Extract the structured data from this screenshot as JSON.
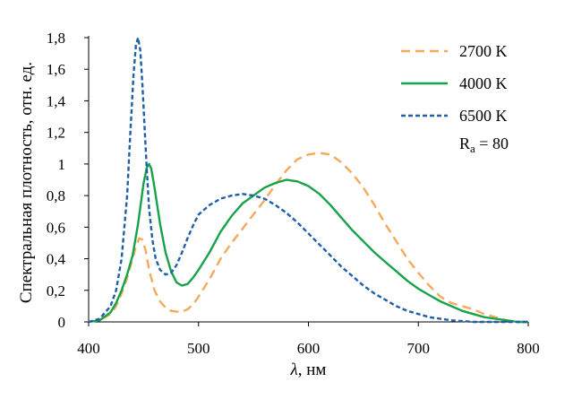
{
  "chart_data": {
    "type": "line",
    "title": "",
    "xlabel": "λ, нм",
    "xlabel_parts": {
      "symbol": "λ",
      "unit": ", нм"
    },
    "ylabel": "Спектральная плотность, отн. ед.",
    "xlim": [
      400,
      800
    ],
    "ylim": [
      0,
      1.8
    ],
    "x_ticks": [
      400,
      500,
      600,
      700,
      800
    ],
    "x_tick_labels": [
      "400",
      "500",
      "600",
      "700",
      "800"
    ],
    "y_ticks": [
      0,
      0.2,
      0.4,
      0.6,
      0.8,
      1.0,
      1.2,
      1.4,
      1.6,
      1.8
    ],
    "y_tick_labels": [
      "0",
      "0,2",
      "0,4",
      "0,6",
      "0,8",
      "1",
      "1,2",
      "1,4",
      "1,6",
      "1,8"
    ],
    "grid": false,
    "legend_position": "top-right",
    "annotation": {
      "text": "Ra = 80",
      "main": "R",
      "subscript": "a",
      "rest": " = 80"
    },
    "series": [
      {
        "name": "2700 K",
        "color": "#f5a95b",
        "style": "dashed",
        "x": [
          400,
          410,
          420,
          425,
          430,
          435,
          440,
          443,
          446,
          449,
          452,
          455,
          460,
          465,
          470,
          475,
          480,
          485,
          490,
          495,
          500,
          510,
          520,
          530,
          540,
          550,
          560,
          570,
          580,
          590,
          600,
          610,
          620,
          630,
          640,
          650,
          660,
          670,
          680,
          690,
          700,
          710,
          720,
          730,
          740,
          750,
          760,
          770,
          780,
          790,
          800
        ],
        "y": [
          0.0,
          0.01,
          0.05,
          0.1,
          0.18,
          0.28,
          0.4,
          0.48,
          0.53,
          0.52,
          0.45,
          0.33,
          0.2,
          0.13,
          0.09,
          0.07,
          0.065,
          0.065,
          0.08,
          0.11,
          0.16,
          0.27,
          0.4,
          0.5,
          0.59,
          0.68,
          0.77,
          0.87,
          0.96,
          1.03,
          1.06,
          1.07,
          1.06,
          1.01,
          0.94,
          0.85,
          0.74,
          0.62,
          0.51,
          0.4,
          0.31,
          0.23,
          0.16,
          0.12,
          0.1,
          0.08,
          0.05,
          0.03,
          0.01,
          0.0,
          0.0
        ]
      },
      {
        "name": "4000 K",
        "color": "#17a24a",
        "style": "solid",
        "x": [
          400,
          410,
          420,
          425,
          430,
          435,
          440,
          445,
          450,
          453,
          455,
          457,
          460,
          465,
          470,
          475,
          480,
          485,
          490,
          495,
          500,
          510,
          520,
          530,
          540,
          550,
          560,
          570,
          580,
          590,
          600,
          610,
          620,
          630,
          640,
          650,
          660,
          670,
          680,
          690,
          700,
          710,
          720,
          730,
          740,
          750,
          760,
          770,
          780,
          790,
          800
        ],
        "y": [
          0.0,
          0.01,
          0.06,
          0.12,
          0.2,
          0.3,
          0.42,
          0.62,
          0.88,
          0.98,
          1.0,
          0.97,
          0.85,
          0.62,
          0.44,
          0.32,
          0.25,
          0.23,
          0.24,
          0.28,
          0.33,
          0.44,
          0.57,
          0.67,
          0.75,
          0.8,
          0.85,
          0.88,
          0.9,
          0.89,
          0.86,
          0.81,
          0.74,
          0.66,
          0.58,
          0.51,
          0.44,
          0.38,
          0.32,
          0.26,
          0.21,
          0.17,
          0.13,
          0.1,
          0.07,
          0.05,
          0.03,
          0.02,
          0.01,
          0.0,
          0.0
        ]
      },
      {
        "name": "6500 K",
        "color": "#1f5fa8",
        "style": "dotted",
        "x": [
          400,
          410,
          420,
          425,
          430,
          435,
          438,
          441,
          443,
          445,
          447,
          449,
          451,
          453,
          455,
          458,
          461,
          465,
          470,
          475,
          480,
          485,
          490,
          495,
          500,
          510,
          520,
          530,
          540,
          550,
          560,
          570,
          580,
          590,
          600,
          610,
          620,
          630,
          640,
          650,
          660,
          670,
          680,
          690,
          700,
          710,
          720,
          730,
          740,
          750,
          760,
          770,
          780,
          790,
          800
        ],
        "y": [
          0.0,
          0.02,
          0.1,
          0.2,
          0.4,
          0.8,
          1.2,
          1.58,
          1.75,
          1.8,
          1.72,
          1.5,
          1.22,
          0.95,
          0.72,
          0.52,
          0.4,
          0.33,
          0.3,
          0.31,
          0.36,
          0.44,
          0.53,
          0.61,
          0.68,
          0.74,
          0.78,
          0.8,
          0.81,
          0.8,
          0.78,
          0.74,
          0.69,
          0.63,
          0.56,
          0.49,
          0.42,
          0.35,
          0.29,
          0.23,
          0.18,
          0.14,
          0.1,
          0.07,
          0.05,
          0.03,
          0.02,
          0.01,
          0.005,
          0.0,
          0.0,
          0.0,
          0.0,
          0.0,
          0.0
        ]
      }
    ]
  }
}
